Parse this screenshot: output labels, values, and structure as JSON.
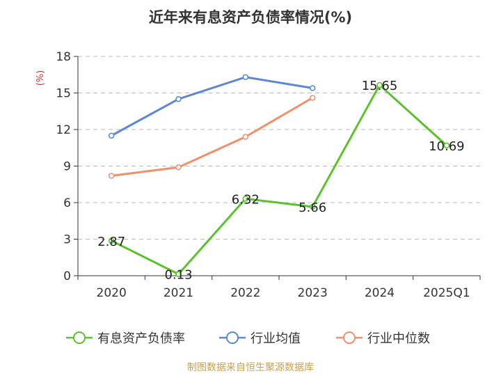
{
  "chart_data": {
    "type": "line",
    "title": "近年来有息资产负债率情况(%)",
    "ylabel": "(%)",
    "categories": [
      "2020",
      "2021",
      "2022",
      "2023",
      "2024",
      "2025Q1"
    ],
    "ylim": [
      0,
      18
    ],
    "yticks": [
      0,
      3,
      6,
      9,
      12,
      15,
      18
    ],
    "grid": true,
    "legend_position": "bottom",
    "series": [
      {
        "name": "有息资产负债率",
        "color": "#5cc22b",
        "values": [
          2.87,
          0.13,
          6.32,
          5.66,
          15.65,
          10.69
        ],
        "labels": [
          "2.87",
          "0.13",
          "6.32",
          "5.66",
          "15.65",
          "10.69"
        ]
      },
      {
        "name": "行业均值",
        "color": "#5b87d6",
        "values": [
          11.5,
          14.5,
          16.3,
          15.4,
          null,
          null
        ]
      },
      {
        "name": "行业中位数",
        "color": "#f0906a",
        "values": [
          8.2,
          8.9,
          11.4,
          14.6,
          null,
          null
        ]
      }
    ],
    "source": "制图数据来自恒生聚源数据库"
  }
}
